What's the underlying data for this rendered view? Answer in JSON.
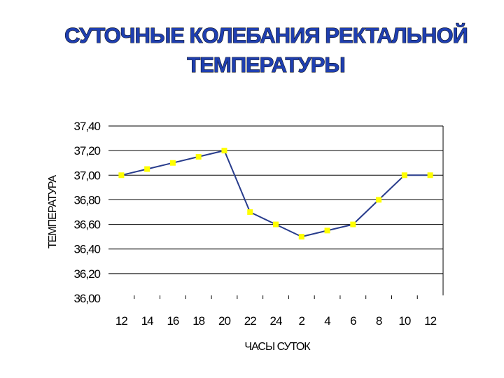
{
  "chart_data": {
    "type": "line",
    "title": "СУТОЧНЫЕ КОЛЕБАНИЯ РЕКТАЛЬНОЙ ТЕМПЕРАТУРЫ",
    "xlabel": "ЧАСЫ СУТОК",
    "ylabel": "ТЕМПЕРАТУРА",
    "categories": [
      "12",
      "14",
      "16",
      "18",
      "20",
      "22",
      "24",
      "2",
      "4",
      "6",
      "8",
      "10",
      "12"
    ],
    "series": [
      {
        "values": [
          37.0,
          37.05,
          37.1,
          37.15,
          37.2,
          36.7,
          36.6,
          36.5,
          36.55,
          36.6,
          36.8,
          37.0,
          37.0
        ]
      }
    ],
    "ylim": [
      36.0,
      37.4
    ],
    "yticks": [
      "36,00",
      "36,20",
      "36,40",
      "36,60",
      "36,80",
      "37,00",
      "37,20",
      "37,40"
    ],
    "grid": true,
    "colors": {
      "line": "#283c8c",
      "marker": "#ffff00",
      "title": "#1f3fb0",
      "grid": "#000000"
    }
  }
}
